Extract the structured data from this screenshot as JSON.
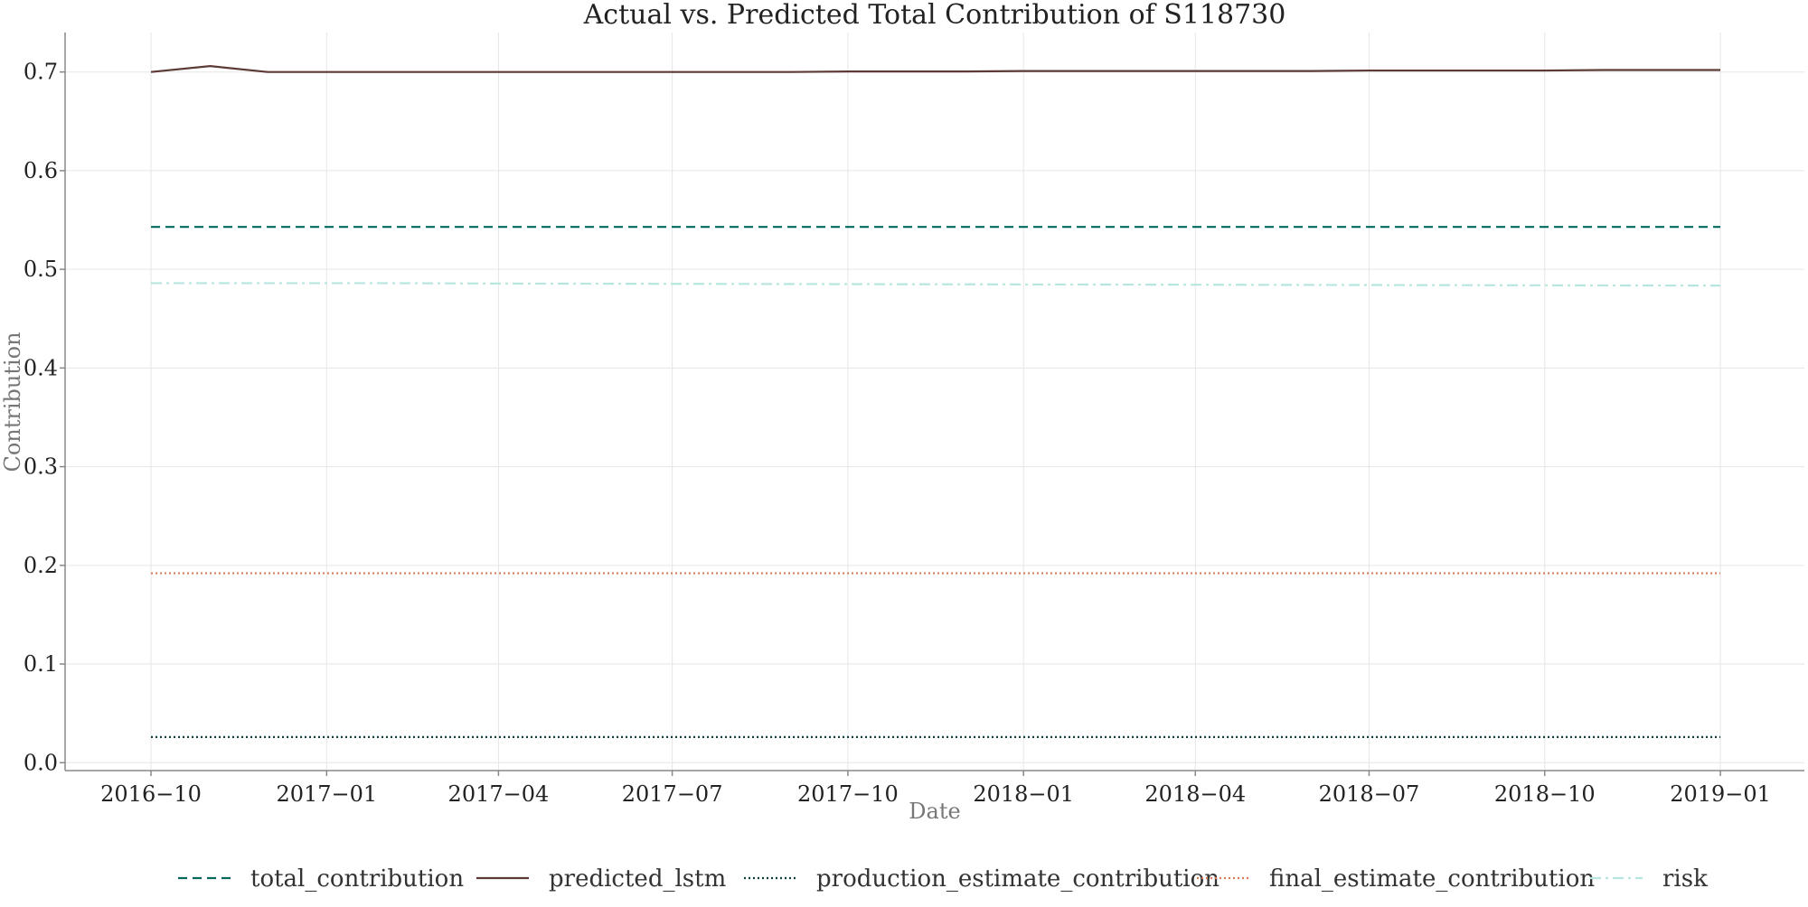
{
  "chart_data": {
    "type": "line",
    "title": "Actual vs. Predicted Total Contribution of S118730",
    "xlabel": "Date",
    "ylabel": "Contribution",
    "x_tick_labels": [
      "2016−10",
      "2017−01",
      "2017−04",
      "2017−07",
      "2017−10",
      "2018−01",
      "2018−04",
      "2018−07",
      "2018−10",
      "2019−01"
    ],
    "x_ticks": [
      "2016-10-01",
      "2017-01-01",
      "2017-04-01",
      "2017-07-01",
      "2017-10-01",
      "2018-01-01",
      "2018-04-01",
      "2018-07-01",
      "2018-10-01",
      "2019-01-01"
    ],
    "xlim": [
      "2016-08-17",
      "2019-02-14"
    ],
    "y_ticks": [
      0.0,
      0.1,
      0.2,
      0.3,
      0.4,
      0.5,
      0.6,
      0.7
    ],
    "y_tick_labels": [
      "0.0",
      "0.1",
      "0.2",
      "0.3",
      "0.4",
      "0.5",
      "0.6",
      "0.7"
    ],
    "ylim": [
      -0.008,
      0.74
    ],
    "grid": true,
    "legend_position": "bottom-center",
    "x": [
      "2016-10-01",
      "2016-11-01",
      "2016-12-01",
      "2017-01-01",
      "2017-02-01",
      "2017-03-01",
      "2017-04-01",
      "2017-05-01",
      "2017-06-01",
      "2017-07-01",
      "2017-08-01",
      "2017-09-01",
      "2017-10-01",
      "2017-11-01",
      "2017-12-01",
      "2018-01-01",
      "2018-02-01",
      "2018-03-01",
      "2018-04-01",
      "2018-05-01",
      "2018-06-01",
      "2018-07-01",
      "2018-08-01",
      "2018-09-01",
      "2018-10-01",
      "2018-11-01",
      "2018-12-01",
      "2019-01-01"
    ],
    "series": [
      {
        "name": "total_contribution",
        "color": "#00695c",
        "dash": "dashed",
        "values": [
          0.543,
          0.543,
          0.543,
          0.543,
          0.543,
          0.543,
          0.543,
          0.543,
          0.543,
          0.543,
          0.543,
          0.543,
          0.543,
          0.543,
          0.543,
          0.543,
          0.543,
          0.543,
          0.543,
          0.543,
          0.543,
          0.543,
          0.543,
          0.543,
          0.543,
          0.543,
          0.543,
          0.543
        ]
      },
      {
        "name": "predicted_lstm",
        "color": "#5d3a35",
        "dash": "solid",
        "values": [
          0.7,
          0.706,
          0.7,
          0.7,
          0.7,
          0.7,
          0.7,
          0.7,
          0.7,
          0.7,
          0.7,
          0.7,
          0.7005,
          0.7005,
          0.7005,
          0.701,
          0.701,
          0.701,
          0.701,
          0.701,
          0.701,
          0.7015,
          0.7015,
          0.7015,
          0.7015,
          0.702,
          0.702,
          0.702
        ]
      },
      {
        "name": "production_estimate_contribution",
        "color": "#0b3d3a",
        "dash": "dotted",
        "values": [
          0.026,
          0.026,
          0.026,
          0.026,
          0.026,
          0.026,
          0.026,
          0.026,
          0.026,
          0.026,
          0.026,
          0.026,
          0.026,
          0.026,
          0.026,
          0.026,
          0.026,
          0.026,
          0.026,
          0.026,
          0.026,
          0.026,
          0.026,
          0.026,
          0.026,
          0.026,
          0.026,
          0.026
        ]
      },
      {
        "name": "final_estimate_contribution",
        "color": "#d97b55",
        "dash": "dotted",
        "values": [
          0.192,
          0.192,
          0.192,
          0.192,
          0.192,
          0.192,
          0.192,
          0.192,
          0.192,
          0.192,
          0.192,
          0.192,
          0.192,
          0.192,
          0.192,
          0.192,
          0.192,
          0.192,
          0.192,
          0.192,
          0.192,
          0.192,
          0.192,
          0.192,
          0.192,
          0.192,
          0.192,
          0.192
        ]
      },
      {
        "name": "risk",
        "color": "#b7e6e0",
        "dash": "dashdot",
        "values": [
          0.486,
          0.486,
          0.486,
          0.486,
          0.486,
          0.4858,
          0.4856,
          0.4855,
          0.4854,
          0.4853,
          0.4852,
          0.4851,
          0.485,
          0.4849,
          0.4848,
          0.4847,
          0.4846,
          0.4845,
          0.4844,
          0.4843,
          0.4842,
          0.4841,
          0.484,
          0.4839,
          0.4838,
          0.4837,
          0.4836,
          0.4835
        ]
      }
    ]
  }
}
